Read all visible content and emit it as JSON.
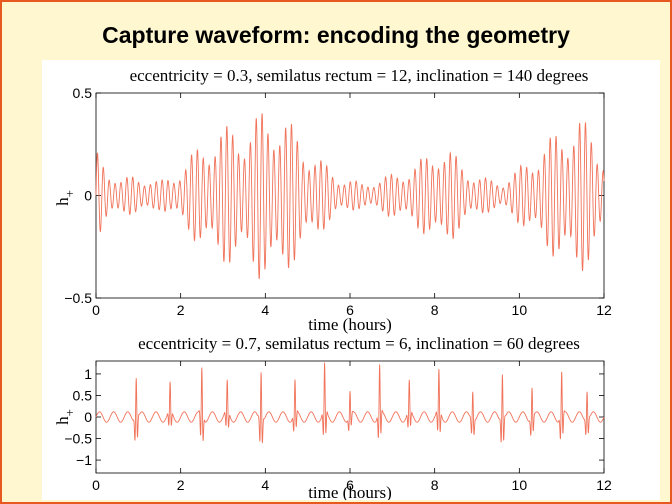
{
  "slide": {
    "title": "Capture waveform: encoding the geometry"
  },
  "colors": {
    "background": "#fff7cf",
    "border": "#e8591f",
    "waveform": "#f0735a"
  },
  "chart_data": [
    {
      "type": "line",
      "title": "eccentricity = 0.3, semilatus rectum = 12,  inclination = 140 degrees",
      "xlabel": "time (hours)",
      "ylabel": "h+",
      "ylabel_main": "h",
      "ylabel_sub": "+",
      "xlim": [
        0,
        12
      ],
      "ylim": [
        -0.5,
        0.5
      ],
      "xticks": [
        0,
        2,
        4,
        6,
        8,
        10,
        12
      ],
      "xtick_labels": [
        "0",
        "2",
        "4",
        "6",
        "8",
        "10",
        "12"
      ],
      "yticks": [
        -0.5,
        0,
        0.5
      ],
      "ytick_labels": [
        "−0.5",
        "0",
        "0.5"
      ],
      "grid": false,
      "series": [
        {
          "x": [
            0,
            0.3,
            0.6,
            0.9,
            1.2,
            1.5,
            1.8,
            2.1,
            2.4,
            2.7,
            3.0,
            3.3,
            3.6,
            3.9,
            4.2,
            4.5,
            4.8,
            5.1,
            5.4,
            5.7,
            6.0,
            6.3,
            6.6,
            6.9,
            7.2,
            7.5,
            7.8,
            8.1,
            8.4,
            8.7,
            9.0,
            9.3,
            9.6,
            9.9,
            10.2,
            10.5,
            10.8,
            11.1,
            11.4,
            11.7,
            12.0
          ],
          "envelope": [
            0.22,
            0.14,
            0.08,
            0.1,
            0.09,
            0.07,
            0.1,
            0.16,
            0.24,
            0.3,
            0.33,
            0.36,
            0.34,
            0.42,
            0.44,
            0.38,
            0.3,
            0.22,
            0.16,
            0.1,
            0.08,
            0.06,
            0.08,
            0.1,
            0.12,
            0.15,
            0.2,
            0.26,
            0.22,
            0.15,
            0.1,
            0.08,
            0.07,
            0.12,
            0.18,
            0.24,
            0.3,
            0.36,
            0.4,
            0.32,
            0.22
          ]
        }
      ]
    },
    {
      "type": "line",
      "title": "eccentricity = 0.7, semilatus rectum = 6,  inclination = 60 degrees",
      "xlabel": "time (hours)",
      "ylabel": "h+",
      "ylabel_main": "h",
      "ylabel_sub": "+",
      "xlim": [
        0,
        12
      ],
      "ylim": [
        -1.3,
        1.3
      ],
      "xticks": [
        0,
        2,
        4,
        6,
        8,
        10,
        12
      ],
      "xtick_labels": [
        "0",
        "2",
        "4",
        "6",
        "8",
        "10",
        "12"
      ],
      "yticks": [
        -1,
        -0.5,
        0,
        0.5,
        1
      ],
      "ytick_labels": [
        "−1",
        "−0.5",
        "0",
        "0.5",
        "1"
      ],
      "grid": false,
      "series": [
        {
          "bursts": [
            {
              "t": 0.95,
              "peak": 1.0
            },
            {
              "t": 1.75,
              "peak": 0.7
            },
            {
              "t": 2.5,
              "peak": 1.15
            },
            {
              "t": 3.1,
              "peak": 0.75
            },
            {
              "t": 3.9,
              "peak": 1.15
            },
            {
              "t": 4.7,
              "peak": 0.8
            },
            {
              "t": 5.4,
              "peak": 1.15
            },
            {
              "t": 6.0,
              "peak": 0.6
            },
            {
              "t": 6.7,
              "peak": 1.15
            },
            {
              "t": 7.4,
              "peak": 0.75
            },
            {
              "t": 8.1,
              "peak": 1.0
            },
            {
              "t": 8.9,
              "peak": 0.7
            },
            {
              "t": 9.6,
              "peak": 1.1
            },
            {
              "t": 10.3,
              "peak": 0.75
            },
            {
              "t": 11.0,
              "peak": 1.05
            },
            {
              "t": 11.6,
              "peak": 0.7
            }
          ],
          "baseline_amplitude": 0.12
        }
      ]
    }
  ]
}
